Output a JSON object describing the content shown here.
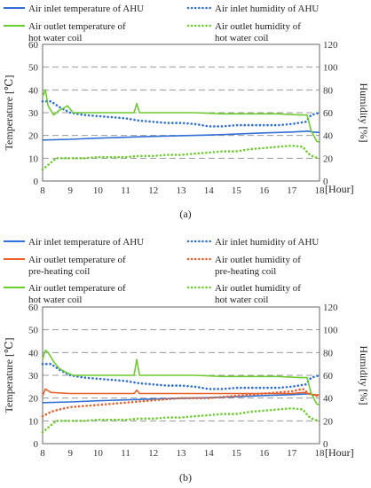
{
  "chart_data": [
    {
      "type": "line",
      "caption": "(a)",
      "xlabel": "[Hour]",
      "ylabel": "Temperature [℃]",
      "y2label": "Humidity [%]",
      "x_ticks": [
        "8",
        "9",
        "10",
        "11",
        "12",
        "13",
        "14",
        "15",
        "16",
        "17",
        "18"
      ],
      "y_ticks": [
        "0",
        "10",
        "20",
        "30",
        "40",
        "50",
        "60"
      ],
      "y2_ticks": [
        "0",
        "20",
        "40",
        "60",
        "80",
        "100",
        "120"
      ],
      "xlim": [
        8,
        18
      ],
      "ylim": [
        0,
        60
      ],
      "y2lim": [
        0,
        120
      ],
      "grid": "horizontal dashed",
      "legend_position": "top",
      "legend": [
        {
          "text": "Air inlet temperature of AHU",
          "series": 0
        },
        {
          "text": "Air inlet humidity of AHU",
          "series": 1
        },
        {
          "text": "Air outlet temperature of",
          "text2": "hot water coil",
          "series": 2
        },
        {
          "text": "Air outlet humidity of",
          "text2": "hot water coil",
          "series": 3
        }
      ],
      "series": [
        {
          "name": "Air inlet temperature of AHU",
          "axis": "left",
          "color": "#2f6fd6",
          "style": "solid",
          "x": [
            8,
            9,
            10,
            11,
            12,
            13,
            14,
            15,
            16,
            17,
            17.6,
            17.75,
            18
          ],
          "y": [
            18,
            18.3,
            18.8,
            19.2,
            19.6,
            19.9,
            20.2,
            20.6,
            21.1,
            21.5,
            21.9,
            21.5,
            21.3
          ]
        },
        {
          "name": "Air inlet humidity of AHU",
          "axis": "right",
          "color": "#2f6fd6",
          "style": "dotted",
          "x": [
            8,
            8.3,
            8.6,
            9,
            9.5,
            10,
            10.5,
            11,
            11.5,
            12,
            12.5,
            13,
            13.5,
            14,
            14.5,
            15,
            15.5,
            16,
            16.5,
            17,
            17.5,
            17.7,
            18
          ],
          "y": [
            70,
            70,
            65,
            60,
            58,
            57,
            56,
            55,
            53,
            52,
            51,
            51,
            50,
            48,
            48,
            49,
            49,
            49,
            49,
            50,
            52,
            58,
            60
          ]
        },
        {
          "name": "Air outlet temperature of hot water coil",
          "axis": "left",
          "color": "#6ccc2e",
          "style": "solid",
          "x": [
            8,
            8.1,
            8.2,
            8.4,
            8.6,
            8.9,
            9.1,
            9.4,
            9.8,
            10.2,
            10.6,
            11,
            11.3,
            11.4,
            11.5,
            11.7,
            12.2,
            12.7,
            13.5,
            14.5,
            15.5,
            16.5,
            17.3,
            17.55,
            17.7,
            17.9,
            18
          ],
          "y": [
            37,
            40,
            33,
            29,
            31,
            33,
            30,
            30,
            30,
            30,
            30,
            30,
            30,
            34,
            30,
            30,
            30,
            30,
            30,
            29.5,
            29.5,
            29.5,
            29,
            29,
            22,
            17.5,
            17
          ]
        },
        {
          "name": "Air outlet humidity of hot water coil",
          "axis": "right",
          "color": "#6ccc2e",
          "style": "dotted",
          "x": [
            8,
            8.2,
            8.5,
            9,
            9.5,
            10,
            10.5,
            11,
            11.5,
            12,
            12.5,
            13,
            13.5,
            14,
            14.5,
            15,
            15.5,
            16,
            16.5,
            17,
            17.4,
            17.6,
            17.8,
            18
          ],
          "y": [
            10,
            14,
            20,
            20,
            20,
            21,
            21,
            21,
            22,
            22,
            23,
            23,
            24,
            25,
            26,
            26,
            28,
            29,
            30,
            31,
            30,
            24,
            21,
            20
          ]
        }
      ]
    },
    {
      "type": "line",
      "caption": "(b)",
      "xlabel": "[Hour]",
      "ylabel": "Temperature [℃]",
      "y2label": "Humidity [%]",
      "x_ticks": [
        "8",
        "9",
        "10",
        "11",
        "12",
        "13",
        "14",
        "15",
        "16",
        "17",
        "18"
      ],
      "y_ticks": [
        "0",
        "10",
        "20",
        "30",
        "40",
        "50",
        "60"
      ],
      "y2_ticks": [
        "0",
        "20",
        "40",
        "60",
        "80",
        "100",
        "120"
      ],
      "xlim": [
        8,
        18
      ],
      "ylim": [
        0,
        60
      ],
      "y2lim": [
        0,
        120
      ],
      "grid": "horizontal dashed",
      "legend_position": "top",
      "legend": [
        {
          "text": "Air inlet temperature of AHU",
          "series": 0
        },
        {
          "text": "Air inlet humidity of AHU",
          "series": 1
        },
        {
          "text": "Air outlet temperature of",
          "text2": "pre-heating coil",
          "series": 2
        },
        {
          "text": "Air outlet humidity of",
          "text2": "pre-heating coil",
          "series": 3
        },
        {
          "text": "Air outlet temperature of",
          "text2": "hot water coil",
          "series": 4
        },
        {
          "text": "Air outlet humidity of",
          "text2": "hot water coil",
          "series": 5
        }
      ],
      "series": [
        {
          "name": "Air inlet temperature of AHU",
          "axis": "left",
          "color": "#2f6fd6",
          "style": "solid",
          "x": [
            8,
            9,
            10,
            11,
            12,
            13,
            14,
            15,
            16,
            17,
            17.6,
            17.75,
            18
          ],
          "y": [
            18,
            18.3,
            18.8,
            19.2,
            19.6,
            19.9,
            20.2,
            20.6,
            21.1,
            21.5,
            21.9,
            21.5,
            21.3
          ]
        },
        {
          "name": "Air inlet humidity of AHU",
          "axis": "right",
          "color": "#2f6fd6",
          "style": "dotted",
          "x": [
            8,
            8.3,
            8.6,
            9,
            9.5,
            10,
            10.5,
            11,
            11.5,
            12,
            12.5,
            13,
            13.5,
            14,
            14.5,
            15,
            15.5,
            16,
            16.5,
            17,
            17.5,
            17.7,
            18
          ],
          "y": [
            70,
            70,
            65,
            60,
            58,
            57,
            56,
            55,
            53,
            52,
            51,
            51,
            50,
            48,
            48,
            49,
            49,
            49,
            49,
            50,
            52,
            58,
            60
          ]
        },
        {
          "name": "Air outlet temperature of pre-heating coil",
          "axis": "left",
          "color": "#e8602a",
          "style": "solid",
          "x": [
            8,
            8.1,
            8.3,
            9,
            10,
            11,
            11.3,
            11.4,
            11.5,
            12,
            13,
            14,
            15,
            16,
            17,
            17.4,
            17.6,
            17.8,
            18
          ],
          "y": [
            21,
            24,
            22.5,
            22,
            22,
            22,
            22,
            23.5,
            22,
            22,
            22,
            22,
            22,
            22,
            22,
            22.5,
            22,
            21.5,
            21.3
          ]
        },
        {
          "name": "Air outlet humidity of pre-heating coil",
          "axis": "right",
          "color": "#e8602a",
          "style": "dotted",
          "x": [
            8,
            8.3,
            8.6,
            9,
            9.5,
            10,
            10.5,
            11,
            11.5,
            12,
            12.5,
            13,
            13.5,
            14,
            14.5,
            15,
            15.5,
            16,
            16.5,
            17,
            17.4,
            17.6,
            17.8,
            18
          ],
          "y": [
            24,
            28,
            30,
            32,
            33,
            34,
            35,
            36,
            37,
            38,
            39,
            40,
            40,
            40,
            41,
            42,
            43,
            44,
            45,
            46,
            48,
            44,
            42,
            42
          ]
        },
        {
          "name": "Air outlet temperature of hot water coil",
          "axis": "left",
          "color": "#6ccc2e",
          "style": "solid",
          "x": [
            8,
            8.1,
            8.2,
            8.4,
            8.6,
            8.9,
            9.1,
            9.4,
            9.8,
            10.2,
            10.6,
            11,
            11.3,
            11.4,
            11.5,
            11.7,
            12.2,
            12.7,
            13.5,
            14.5,
            15.5,
            16.5,
            17.3,
            17.55,
            17.7,
            17.9,
            18
          ],
          "y": [
            37,
            41,
            40,
            36,
            33,
            31,
            30,
            30,
            30,
            30,
            30,
            30,
            30,
            37,
            30,
            30,
            30,
            30,
            30,
            29.5,
            29.5,
            29.5,
            29,
            29,
            22,
            17.5,
            17
          ]
        },
        {
          "name": "Air outlet humidity of hot water coil",
          "axis": "right",
          "color": "#6ccc2e",
          "style": "dotted",
          "x": [
            8,
            8.2,
            8.5,
            9,
            9.5,
            10,
            10.5,
            11,
            11.5,
            12,
            12.5,
            13,
            13.5,
            14,
            14.5,
            15,
            15.5,
            16,
            16.5,
            17,
            17.4,
            17.6,
            17.8,
            18
          ],
          "y": [
            10,
            14,
            20,
            20,
            20,
            21,
            21,
            21,
            22,
            22,
            23,
            23,
            24,
            25,
            26,
            26,
            28,
            29,
            30,
            31,
            30,
            24,
            21,
            20
          ]
        }
      ]
    }
  ]
}
